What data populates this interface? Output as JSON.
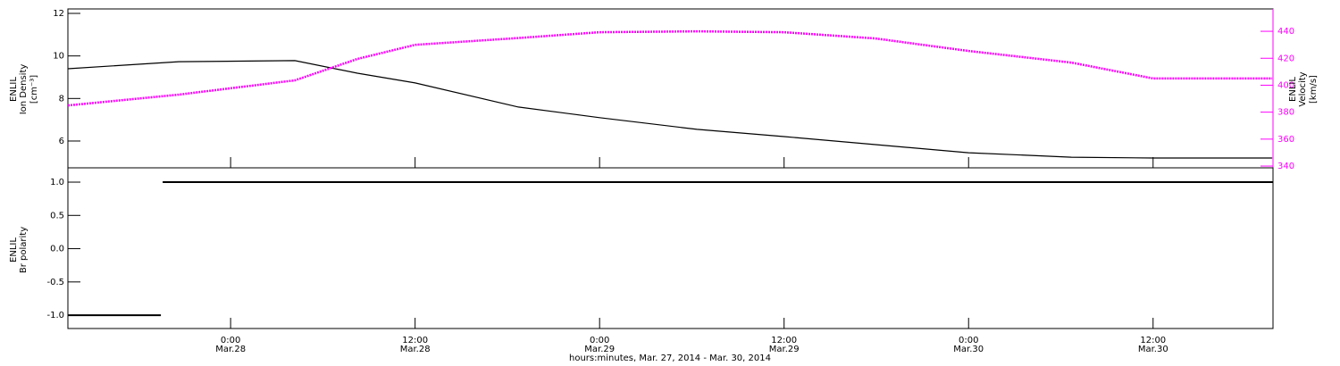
{
  "chart_data": [
    {
      "type": "line",
      "ylabel": [
        "ENLIL",
        "Ion Density",
        "[cm⁻³]"
      ],
      "y2label": [
        "ENLIL",
        "Velocity",
        "[km/s]"
      ],
      "x": [
        "2014-03-27T13:25",
        "2014-03-27T20:38",
        "2014-03-28T04:11",
        "2014-03-28T08:15",
        "2014-03-28T12:00",
        "2014-03-28T18:43",
        "2014-03-29T00:00",
        "2014-03-29T06:20",
        "2014-03-29T12:00",
        "2014-03-29T17:57",
        "2014-03-30T00:00",
        "2014-03-30T06:41",
        "2014-03-30T12:00",
        "2014-03-30T19:45"
      ],
      "xlim": [
        "2014-03-27T13:25",
        "2014-03-30T19:48"
      ],
      "ylim": [
        4.74,
        12.21
      ],
      "yticks": [
        6,
        8,
        10,
        12
      ],
      "y2lim": [
        338.7,
        456.6
      ],
      "y2ticks": [
        340,
        360,
        380,
        400,
        420,
        440
      ],
      "series": [
        {
          "name": "Ion Density",
          "color": "#000000",
          "values": [
            9.4,
            9.73,
            9.78,
            9.19,
            8.73,
            7.6,
            7.1,
            6.55,
            6.21,
            5.83,
            5.45,
            5.24,
            5.2,
            5.2
          ]
        },
        {
          "name": "Velocity",
          "color": "#ff00ff",
          "axis": "y2",
          "values": [
            385,
            393,
            403.6,
            419.5,
            430,
            435,
            439.3,
            440,
            439.3,
            434.7,
            425.4,
            416.8,
            405,
            405
          ]
        }
      ]
    },
    {
      "type": "line",
      "ylabel": [
        "ENLIL",
        "Br polarity"
      ],
      "xlabel": "hours:minutes, Mar. 27, 2014 - Mar. 30, 2014",
      "x": [
        "2014-03-27T13:25",
        "2014-03-27T19:28",
        "2014-03-27T19:31",
        "2014-03-27T19:35",
        "2014-03-30T19:48"
      ],
      "xlim": [
        "2014-03-27T13:25",
        "2014-03-30T19:48"
      ],
      "xticks": [
        {
          "value": "2014-03-28T00:00",
          "label": [
            "0:00",
            "Mar.28"
          ]
        },
        {
          "value": "2014-03-28T12:00",
          "label": [
            "12:00",
            "Mar.28"
          ]
        },
        {
          "value": "2014-03-29T00:00",
          "label": [
            "0:00",
            "Mar.29"
          ]
        },
        {
          "value": "2014-03-29T12:00",
          "label": [
            "12:00",
            "Mar.29"
          ]
        },
        {
          "value": "2014-03-30T00:00",
          "label": [
            "0:00",
            "Mar.30"
          ]
        },
        {
          "value": "2014-03-30T12:00",
          "label": [
            "12:00",
            "Mar.30"
          ]
        }
      ],
      "ylim": [
        -1.2,
        1.215
      ],
      "yticks": [
        {
          "value": -1,
          "label": "-1.0"
        },
        -0.5,
        {
          "value": 0,
          "label": "0.0"
        },
        0.5,
        {
          "value": 1,
          "label": "1.0"
        }
      ],
      "series": [
        {
          "name": "Br polarity",
          "color": "#000000",
          "values": [
            -1,
            -1,
            null,
            1,
            1
          ]
        }
      ]
    }
  ]
}
